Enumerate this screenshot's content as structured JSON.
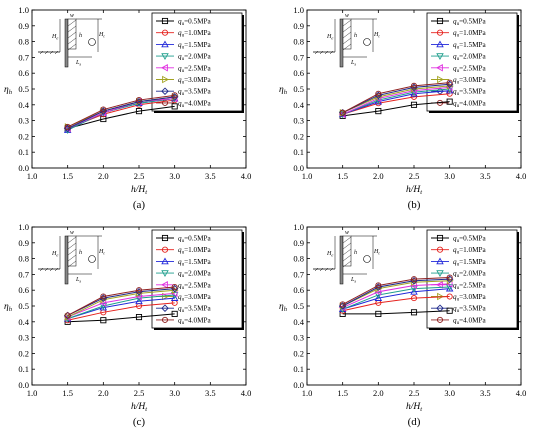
{
  "figure": {
    "xlabel": "h/H",
    "xlabel_sub": "t",
    "ylabel": "η",
    "ylabel_sub": "h",
    "schematic_labels": {
      "H_e": "H",
      "H_e_sub": "e",
      "w": "w",
      "h": "h",
      "H_t": "H",
      "H_t_sub": "t",
      "L": "L",
      "L_sub": "s"
    }
  },
  "legend_entries": [
    {
      "label": "=0.5MPa",
      "symbol": "q",
      "sub": "u",
      "color": "#000000",
      "marker": "square"
    },
    {
      "label": "=1.0MPa",
      "symbol": "q",
      "sub": "u",
      "color": "#e5211d",
      "marker": "circle"
    },
    {
      "label": "=1.5MPa",
      "symbol": "q",
      "sub": "u",
      "color": "#2127d9",
      "marker": "triangle-up"
    },
    {
      "label": "=2.0MPa",
      "symbol": "q",
      "sub": "u",
      "color": "#1e9e8c",
      "marker": "triangle-down"
    },
    {
      "label": "=2.5MPa",
      "symbol": "q",
      "sub": "u",
      "color": "#e02ee0",
      "marker": "triangle-left"
    },
    {
      "label": "=3.0MPa",
      "symbol": "q",
      "sub": "u",
      "color": "#a3a322",
      "marker": "triangle-right"
    },
    {
      "label": "=3.5MPa",
      "symbol": "q",
      "sub": "u",
      "color": "#1f2a8c",
      "marker": "diamond"
    },
    {
      "label": "=4.0MPa",
      "symbol": "q",
      "sub": "u",
      "color": "#8f2020",
      "marker": "circle"
    }
  ],
  "chart_data": [
    {
      "type": "line",
      "caption": "(a)",
      "x": [
        1.5,
        2.0,
        2.5,
        3.0
      ],
      "xlim": [
        1.0,
        4.0
      ],
      "ylim": [
        0.0,
        1.0
      ],
      "xticks": [
        "1.0",
        "1.5",
        "2.0",
        "2.5",
        "3.0",
        "3.5",
        "4.0"
      ],
      "yticks": [
        "0.0",
        "0.1",
        "0.2",
        "0.3",
        "0.4",
        "0.5",
        "0.6",
        "0.7",
        "0.8",
        "0.9",
        "1.0"
      ],
      "series": [
        {
          "name": "qu=0.5MPa",
          "values": [
            0.25,
            0.31,
            0.36,
            0.39
          ]
        },
        {
          "name": "qu=1.0MPa",
          "values": [
            0.25,
            0.34,
            0.4,
            0.43
          ]
        },
        {
          "name": "qu=1.5MPa",
          "values": [
            0.24,
            0.35,
            0.41,
            0.44
          ]
        },
        {
          "name": "qu=2.0MPa",
          "values": [
            0.24,
            0.35,
            0.41,
            0.44
          ]
        },
        {
          "name": "qu=2.5MPa",
          "values": [
            0.25,
            0.35,
            0.42,
            0.44
          ]
        },
        {
          "name": "qu=3.0MPa",
          "values": [
            0.26,
            0.36,
            0.42,
            0.45
          ]
        },
        {
          "name": "qu=3.5MPa",
          "values": [
            0.25,
            0.36,
            0.42,
            0.45
          ]
        },
        {
          "name": "qu=4.0MPa",
          "values": [
            0.26,
            0.37,
            0.43,
            0.46
          ]
        }
      ]
    },
    {
      "type": "line",
      "caption": "(b)",
      "x": [
        1.5,
        2.0,
        2.5,
        3.0
      ],
      "xlim": [
        1.0,
        4.0
      ],
      "ylim": [
        0.0,
        1.0
      ],
      "xticks": [
        "1.0",
        "1.5",
        "2.0",
        "2.5",
        "3.0",
        "3.5",
        "4.0"
      ],
      "yticks": [
        "0.0",
        "0.1",
        "0.2",
        "0.3",
        "0.4",
        "0.5",
        "0.6",
        "0.7",
        "0.8",
        "0.9",
        "1.0"
      ],
      "series": [
        {
          "name": "qu=0.5MPa",
          "values": [
            0.33,
            0.36,
            0.4,
            0.42
          ]
        },
        {
          "name": "qu=1.0MPa",
          "values": [
            0.34,
            0.41,
            0.45,
            0.47
          ]
        },
        {
          "name": "qu=1.5MPa",
          "values": [
            0.34,
            0.42,
            0.47,
            0.49
          ]
        },
        {
          "name": "qu=2.0MPa",
          "values": [
            0.34,
            0.43,
            0.48,
            0.5
          ]
        },
        {
          "name": "qu=2.5MPa",
          "values": [
            0.34,
            0.44,
            0.49,
            0.51
          ]
        },
        {
          "name": "qu=3.0MPa",
          "values": [
            0.35,
            0.45,
            0.5,
            0.52
          ]
        },
        {
          "name": "qu=3.5MPa",
          "values": [
            0.35,
            0.46,
            0.51,
            0.53
          ]
        },
        {
          "name": "qu=4.0MPa",
          "values": [
            0.35,
            0.47,
            0.52,
            0.54
          ]
        }
      ]
    },
    {
      "type": "line",
      "caption": "(c)",
      "x": [
        1.5,
        2.0,
        2.5,
        3.0
      ],
      "xlim": [
        1.0,
        4.0
      ],
      "ylim": [
        0.0,
        1.0
      ],
      "xticks": [
        "1.0",
        "1.5",
        "2.0",
        "2.5",
        "3.0",
        "3.5",
        "4.0"
      ],
      "yticks": [
        "0.0",
        "0.1",
        "0.2",
        "0.3",
        "0.4",
        "0.5",
        "0.6",
        "0.7",
        "0.8",
        "0.9",
        "1.0"
      ],
      "series": [
        {
          "name": "qu=0.5MPa",
          "values": [
            0.4,
            0.41,
            0.43,
            0.45
          ]
        },
        {
          "name": "qu=1.0MPa",
          "values": [
            0.41,
            0.46,
            0.5,
            0.52
          ]
        },
        {
          "name": "qu=1.5MPa",
          "values": [
            0.42,
            0.49,
            0.53,
            0.55
          ]
        },
        {
          "name": "qu=2.0MPa",
          "values": [
            0.42,
            0.5,
            0.55,
            0.57
          ]
        },
        {
          "name": "qu=2.5MPa",
          "values": [
            0.43,
            0.52,
            0.56,
            0.58
          ]
        },
        {
          "name": "qu=3.0MPa",
          "values": [
            0.43,
            0.54,
            0.58,
            0.6
          ]
        },
        {
          "name": "qu=3.5MPa",
          "values": [
            0.44,
            0.55,
            0.59,
            0.61
          ]
        },
        {
          "name": "qu=4.0MPa",
          "values": [
            0.44,
            0.56,
            0.6,
            0.62
          ]
        }
      ]
    },
    {
      "type": "line",
      "caption": "(d)",
      "x": [
        1.5,
        2.0,
        2.5,
        3.0
      ],
      "xlim": [
        1.0,
        4.0
      ],
      "ylim": [
        0.0,
        1.0
      ],
      "xticks": [
        "1.0",
        "1.5",
        "2.0",
        "2.5",
        "3.0",
        "3.5",
        "4.0"
      ],
      "yticks": [
        "0.0",
        "0.1",
        "0.2",
        "0.3",
        "0.4",
        "0.5",
        "0.6",
        "0.7",
        "0.8",
        "0.9",
        "1.0"
      ],
      "series": [
        {
          "name": "qu=0.5MPa",
          "values": [
            0.45,
            0.45,
            0.46,
            0.47
          ]
        },
        {
          "name": "qu=1.0MPa",
          "values": [
            0.47,
            0.52,
            0.55,
            0.56
          ]
        },
        {
          "name": "qu=1.5MPa",
          "values": [
            0.48,
            0.55,
            0.59,
            0.61
          ]
        },
        {
          "name": "qu=2.0MPa",
          "values": [
            0.48,
            0.57,
            0.61,
            0.62
          ]
        },
        {
          "name": "qu=2.5MPa",
          "values": [
            0.49,
            0.59,
            0.63,
            0.64
          ]
        },
        {
          "name": "qu=3.0MPa",
          "values": [
            0.5,
            0.61,
            0.65,
            0.66
          ]
        },
        {
          "name": "qu=3.5MPa",
          "values": [
            0.5,
            0.62,
            0.66,
            0.67
          ]
        },
        {
          "name": "qu=4.0MPa",
          "values": [
            0.51,
            0.63,
            0.67,
            0.68
          ]
        }
      ]
    }
  ]
}
